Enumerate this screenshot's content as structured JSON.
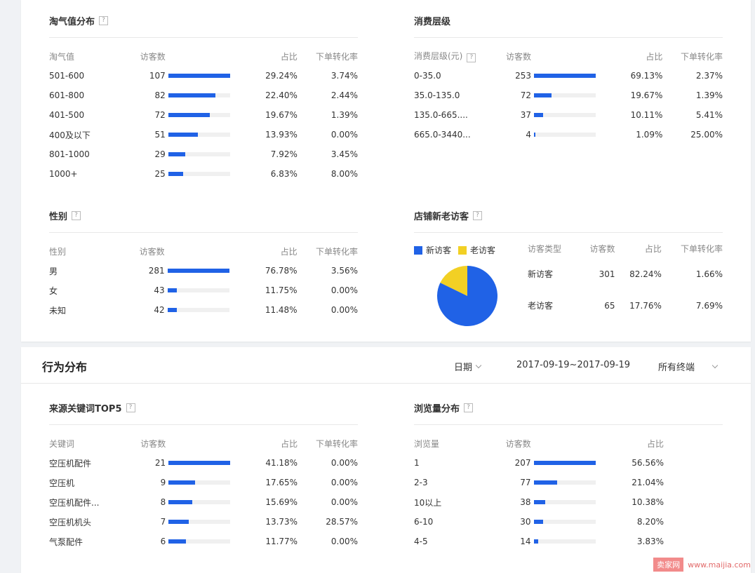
{
  "taoqi": {
    "title": "淘气值分布",
    "headers": [
      "淘气值",
      "访客数",
      "占比",
      "下单转化率"
    ],
    "rows": [
      {
        "label": "501-600",
        "count": "107",
        "pct": "29.24%",
        "conv": "3.74%",
        "fill": 1.0
      },
      {
        "label": "601-800",
        "count": "82",
        "pct": "22.40%",
        "conv": "2.44%",
        "fill": 0.766
      },
      {
        "label": "401-500",
        "count": "72",
        "pct": "19.67%",
        "conv": "1.39%",
        "fill": 0.673
      },
      {
        "label": "400及以下",
        "count": "51",
        "pct": "13.93%",
        "conv": "0.00%",
        "fill": 0.477
      },
      {
        "label": "801-1000",
        "count": "29",
        "pct": "7.92%",
        "conv": "3.45%",
        "fill": 0.271
      },
      {
        "label": "1000+",
        "count": "25",
        "pct": "6.83%",
        "conv": "8.00%",
        "fill": 0.234
      }
    ]
  },
  "consume": {
    "title": "消费层级",
    "headers": [
      "消费层级(元)",
      "访客数",
      "占比",
      "下单转化率"
    ],
    "rows": [
      {
        "label": "0-35.0",
        "count": "253",
        "pct": "69.13%",
        "conv": "2.37%",
        "fill": 1.0
      },
      {
        "label": "35.0-135.0",
        "count": "72",
        "pct": "19.67%",
        "conv": "1.39%",
        "fill": 0.285
      },
      {
        "label": "135.0-665....",
        "count": "37",
        "pct": "10.11%",
        "conv": "5.41%",
        "fill": 0.146
      },
      {
        "label": "665.0-3440...",
        "count": "4",
        "pct": "1.09%",
        "conv": "25.00%",
        "fill": 0.016
      }
    ]
  },
  "gender": {
    "title": "性别",
    "headers": [
      "性别",
      "访客数",
      "占比",
      "下单转化率"
    ],
    "rows": [
      {
        "label": "男",
        "count": "281",
        "pct": "76.78%",
        "conv": "3.56%",
        "fill": 1.0
      },
      {
        "label": "女",
        "count": "43",
        "pct": "11.75%",
        "conv": "0.00%",
        "fill": 0.153
      },
      {
        "label": "未知",
        "count": "42",
        "pct": "11.48%",
        "conv": "0.00%",
        "fill": 0.149
      }
    ]
  },
  "visitors": {
    "title": "店铺新老访客",
    "legend_new": "新访客",
    "legend_old": "老访客",
    "color_new": "#2062e6",
    "color_old": "#f2d024",
    "headers": [
      "访客类型",
      "访客数",
      "占比",
      "下单转化率"
    ],
    "rows": [
      {
        "type": "新访客",
        "count": "301",
        "pct": "82.24%",
        "conv": "1.66%"
      },
      {
        "type": "老访客",
        "count": "65",
        "pct": "17.76%",
        "conv": "7.69%"
      }
    ],
    "new_share": 0.8224
  },
  "behavior": {
    "title": "行为分布",
    "date_label": "日期",
    "date_range": "2017-09-19~2017-09-19",
    "terminal": "所有终端"
  },
  "keywords": {
    "title": "来源关键词TOP5",
    "headers": [
      "关键词",
      "访客数",
      "占比",
      "下单转化率"
    ],
    "rows": [
      {
        "label": "空压机配件",
        "count": "21",
        "pct": "41.18%",
        "conv": "0.00%",
        "fill": 1.0
      },
      {
        "label": "空压机",
        "count": "9",
        "pct": "17.65%",
        "conv": "0.00%",
        "fill": 0.429
      },
      {
        "label": "空压机配件...",
        "count": "8",
        "pct": "15.69%",
        "conv": "0.00%",
        "fill": 0.381
      },
      {
        "label": "空压机机头",
        "count": "7",
        "pct": "13.73%",
        "conv": "28.57%",
        "fill": 0.333
      },
      {
        "label": "气泵配件",
        "count": "6",
        "pct": "11.77%",
        "conv": "0.00%",
        "fill": 0.286
      }
    ]
  },
  "pageviews": {
    "title": "浏览量分布",
    "headers": [
      "浏览量",
      "访客数",
      "占比"
    ],
    "rows": [
      {
        "label": "1",
        "count": "207",
        "pct": "56.56%",
        "fill": 1.0
      },
      {
        "label": "2-3",
        "count": "77",
        "pct": "21.04%",
        "fill": 0.372
      },
      {
        "label": "10以上",
        "count": "38",
        "pct": "10.38%",
        "fill": 0.184
      },
      {
        "label": "6-10",
        "count": "30",
        "pct": "8.20%",
        "fill": 0.145
      },
      {
        "label": "4-5",
        "count": "14",
        "pct": "3.83%",
        "fill": 0.068
      }
    ]
  },
  "watermark": {
    "logo": "卖家网",
    "url": "www.maijia.com"
  }
}
